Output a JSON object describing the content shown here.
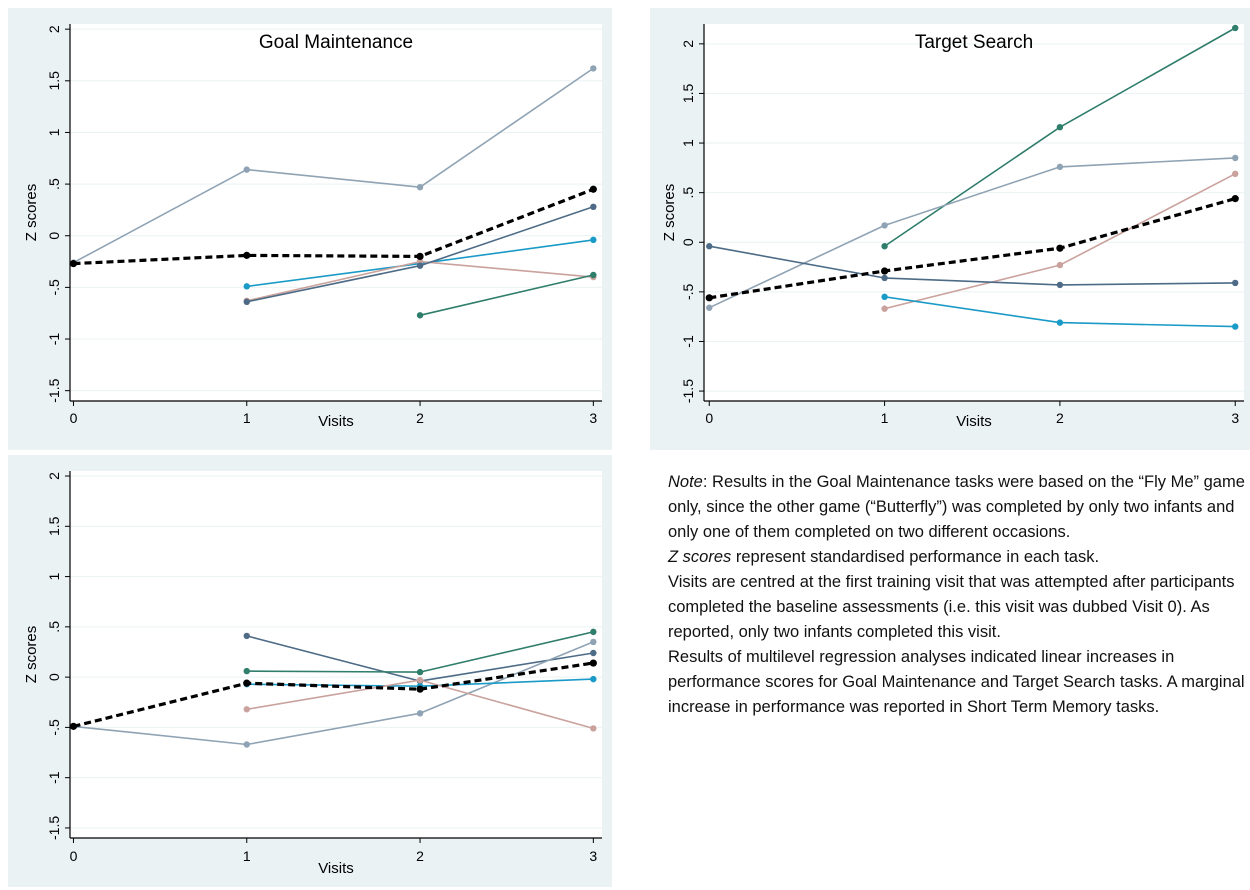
{
  "chart_data": [
    {
      "type": "line",
      "title": "Goal Maintenance",
      "xlabel": "Visits",
      "ylabel": "Z scores",
      "x_ticks": [
        0,
        1,
        2,
        3
      ],
      "y_ticks": [
        -1.5,
        -1,
        -0.5,
        0,
        0.5,
        1,
        1.5,
        2
      ],
      "y_tick_labels": [
        "-1.5",
        "-1",
        "-.5",
        "0",
        ".5",
        "1",
        "1.5",
        "2"
      ],
      "xlim": [
        -0.02,
        3.05
      ],
      "ylim": [
        -1.6,
        2.05
      ],
      "grid": true,
      "series": [
        {
          "color": "#8fa3b4",
          "dashed": false,
          "points": [
            [
              0,
              -0.26
            ],
            [
              1,
              0.64
            ],
            [
              2,
              0.47
            ],
            [
              3,
              1.62
            ]
          ]
        },
        {
          "color": "#1a9ac7",
          "dashed": false,
          "points": [
            [
              1,
              -0.49
            ],
            [
              2,
              -0.27
            ],
            [
              3,
              -0.04
            ]
          ]
        },
        {
          "color": "#caa29d",
          "dashed": false,
          "points": [
            [
              1,
              -0.63
            ],
            [
              2,
              -0.25
            ],
            [
              3,
              -0.4
            ]
          ]
        },
        {
          "color": "#4d6b86",
          "dashed": false,
          "points": [
            [
              1,
              -0.64
            ],
            [
              2,
              -0.29
            ],
            [
              3,
              0.28
            ]
          ]
        },
        {
          "color": "#2f7d6b",
          "dashed": false,
          "points": [
            [
              2,
              -0.77
            ],
            [
              3,
              -0.38
            ]
          ]
        },
        {
          "color": "#000000",
          "dashed": true,
          "points": [
            [
              0,
              -0.27
            ],
            [
              1,
              -0.19
            ],
            [
              2,
              -0.2
            ],
            [
              3,
              0.45
            ]
          ]
        }
      ]
    },
    {
      "type": "line",
      "title": "Target Search",
      "xlabel": "Visits",
      "ylabel": "Z scores",
      "x_ticks": [
        0,
        1,
        2,
        3
      ],
      "y_ticks": [
        -1.5,
        -1,
        -0.5,
        0,
        0.5,
        1,
        1.5,
        2
      ],
      "y_tick_labels": [
        "-1.5",
        "-1",
        "-.5",
        "0",
        ".5",
        "1",
        "1.5",
        "2"
      ],
      "xlim": [
        -0.03,
        3.05
      ],
      "ylim": [
        -1.6,
        2.2
      ],
      "grid": true,
      "series": [
        {
          "color": "#2f7d6b",
          "dashed": false,
          "points": [
            [
              1,
              -0.04
            ],
            [
              2,
              1.16
            ],
            [
              3,
              2.16
            ]
          ]
        },
        {
          "color": "#8fa3b4",
          "dashed": false,
          "points": [
            [
              0,
              -0.66
            ],
            [
              1,
              0.17
            ],
            [
              2,
              0.76
            ],
            [
              3,
              0.85
            ]
          ]
        },
        {
          "color": "#caa29d",
          "dashed": false,
          "points": [
            [
              1,
              -0.67
            ],
            [
              2,
              -0.23
            ],
            [
              3,
              0.69
            ]
          ]
        },
        {
          "color": "#4d6b86",
          "dashed": false,
          "points": [
            [
              0,
              -0.04
            ],
            [
              1,
              -0.36
            ],
            [
              2,
              -0.43
            ],
            [
              3,
              -0.41
            ]
          ]
        },
        {
          "color": "#1a9ac7",
          "dashed": false,
          "points": [
            [
              1,
              -0.55
            ],
            [
              2,
              -0.81
            ],
            [
              3,
              -0.85
            ]
          ]
        },
        {
          "color": "#000000",
          "dashed": true,
          "points": [
            [
              0,
              -0.56
            ],
            [
              1,
              -0.29
            ],
            [
              2,
              -0.06
            ],
            [
              3,
              0.44
            ]
          ]
        }
      ]
    },
    {
      "type": "line",
      "title": "",
      "xlabel": "Visits",
      "ylabel": "Z scores",
      "x_ticks": [
        0,
        1,
        2,
        3
      ],
      "y_ticks": [
        -1.5,
        -1,
        -0.5,
        0,
        0.5,
        1,
        1.5,
        2
      ],
      "y_tick_labels": [
        "-1.5",
        "-1",
        "-.5",
        "0",
        ".5",
        "1",
        "1.5",
        "2"
      ],
      "xlim": [
        -0.02,
        3.05
      ],
      "ylim": [
        -1.6,
        2.05
      ],
      "grid": true,
      "series": [
        {
          "color": "#4d6b86",
          "dashed": false,
          "points": [
            [
              1,
              0.41
            ],
            [
              2,
              -0.04
            ],
            [
              3,
              0.24
            ]
          ]
        },
        {
          "color": "#2f7d6b",
          "dashed": false,
          "points": [
            [
              1,
              0.06
            ],
            [
              2,
              0.05
            ],
            [
              3,
              0.45
            ]
          ]
        },
        {
          "color": "#8fa3b4",
          "dashed": false,
          "points": [
            [
              0,
              -0.49
            ],
            [
              1,
              -0.67
            ],
            [
              2,
              -0.36
            ],
            [
              3,
              0.35
            ]
          ]
        },
        {
          "color": "#1a9ac7",
          "dashed": false,
          "points": [
            [
              1,
              -0.07
            ],
            [
              2,
              -0.09
            ],
            [
              3,
              -0.02
            ]
          ]
        },
        {
          "color": "#caa29d",
          "dashed": false,
          "points": [
            [
              1,
              -0.32
            ],
            [
              2,
              -0.03
            ],
            [
              3,
              -0.51
            ]
          ]
        },
        {
          "color": "#000000",
          "dashed": true,
          "points": [
            [
              0,
              -0.49
            ],
            [
              1,
              -0.06
            ],
            [
              2,
              -0.12
            ],
            [
              3,
              0.14
            ]
          ]
        }
      ]
    }
  ],
  "note": {
    "note_label": "Note",
    "para1_rest": ": Results in the Goal Maintenance tasks were based on the “Fly Me” game only, since the other game (“Butterfly”) was completed by only two infants and only one of them completed on two different occasions.",
    "z_label": "Z scores",
    "para2_rest": " represent standardised performance in each task.",
    "para3": "Visits are centred at the first training visit that was attempted after participants completed the baseline assessments (i.e. this visit was dubbed Visit 0). As reported, only two infants completed this visit.",
    "para4": "Results of multilevel regression analyses indicated linear increases in performance scores for Goal Maintenance and Target Search tasks. A marginal increase in performance was reported in Short Term Memory tasks."
  }
}
